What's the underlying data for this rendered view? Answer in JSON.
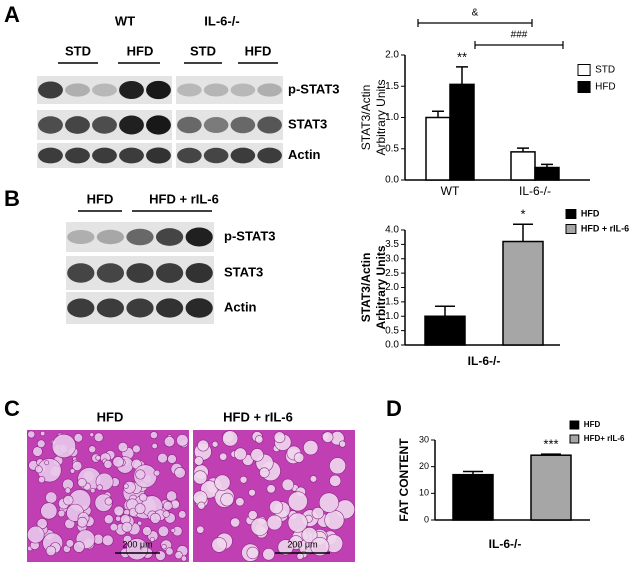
{
  "panels": [
    "A",
    "B",
    "C",
    "D"
  ],
  "blots": [
    {
      "groups": [
        "WT",
        "IL-6-/-"
      ],
      "lanes": [
        "STD",
        "HFD",
        "STD",
        "HFD"
      ],
      "proteins": [
        "p-STAT3",
        "STAT3",
        "Actin"
      ]
    },
    {
      "lanes": [
        "HFD",
        "HFD + rIL-6"
      ],
      "proteins": [
        "p-STAT3",
        "STAT3",
        "Actin"
      ]
    }
  ],
  "histology": {
    "labels": [
      "HFD",
      "HFD + rIL-6"
    ],
    "scale_bars": [
      "200 μm",
      "200 μm"
    ]
  },
  "chart_data": [
    {
      "type": "bar",
      "ylabel": [
        "STAT3/Actin",
        "Arbitrary Units"
      ],
      "categories": [
        "WT",
        "IL-6-/-"
      ],
      "series": [
        {
          "name": "STD",
          "color": "#ffffff",
          "values": [
            1.0,
            0.45
          ],
          "errors": [
            0.1,
            0.06
          ]
        },
        {
          "name": "HFD",
          "color": "#000000",
          "values": [
            1.53,
            0.2
          ],
          "errors": [
            0.28,
            0.05
          ]
        }
      ],
      "ylim": [
        0,
        2.0
      ],
      "yticks": [
        {
          "value": 0,
          "label": "0.0"
        },
        {
          "value": 0.5,
          "label": "0.5"
        },
        {
          "value": 1.0,
          "label": "1.0"
        },
        {
          "value": 1.5,
          "label": "1.5"
        },
        {
          "value": 2.0,
          "label": "2.0"
        }
      ],
      "annotations": [
        "**",
        "&",
        "###"
      ]
    },
    {
      "type": "bar",
      "ylabel": [
        "STAT3/Actin",
        "Arbitrary Units"
      ],
      "xlabel": "IL-6-/-",
      "series": [
        {
          "name": "HFD",
          "color": "#000000",
          "values": [
            1.0
          ],
          "errors": [
            0.35
          ]
        },
        {
          "name": "HFD + rIL-6",
          "color": "#a6a6a6",
          "values": [
            3.6
          ],
          "errors": [
            0.6
          ]
        }
      ],
      "ylim": [
        0,
        4.0
      ],
      "yticks": [
        {
          "value": 0,
          "label": "0.0"
        },
        {
          "value": 0.5,
          "label": "0.5"
        },
        {
          "value": 1.0,
          "label": "1.0"
        },
        {
          "value": 1.5,
          "label": "1.5"
        },
        {
          "value": 2.0,
          "label": "2.0"
        },
        {
          "value": 2.5,
          "label": "2.5"
        },
        {
          "value": 3.0,
          "label": "3.0"
        },
        {
          "value": 3.5,
          "label": "3.5"
        },
        {
          "value": 4.0,
          "label": "4.0"
        }
      ],
      "annotations": [
        "*"
      ]
    },
    {
      "type": "bar",
      "ylabel": [
        "FAT CONTENT"
      ],
      "xlabel": "IL-6-/-",
      "series": [
        {
          "name": "HFD",
          "color": "#000000",
          "values": [
            17
          ],
          "errors": [
            1.2
          ]
        },
        {
          "name": "HFD+ rIL-6",
          "color": "#a6a6a6",
          "values": [
            24.3
          ],
          "errors": [
            0.4
          ]
        }
      ],
      "ylim": [
        0,
        30
      ],
      "yticks": [
        0,
        10,
        20,
        30
      ],
      "annotations": [
        "***"
      ]
    }
  ]
}
